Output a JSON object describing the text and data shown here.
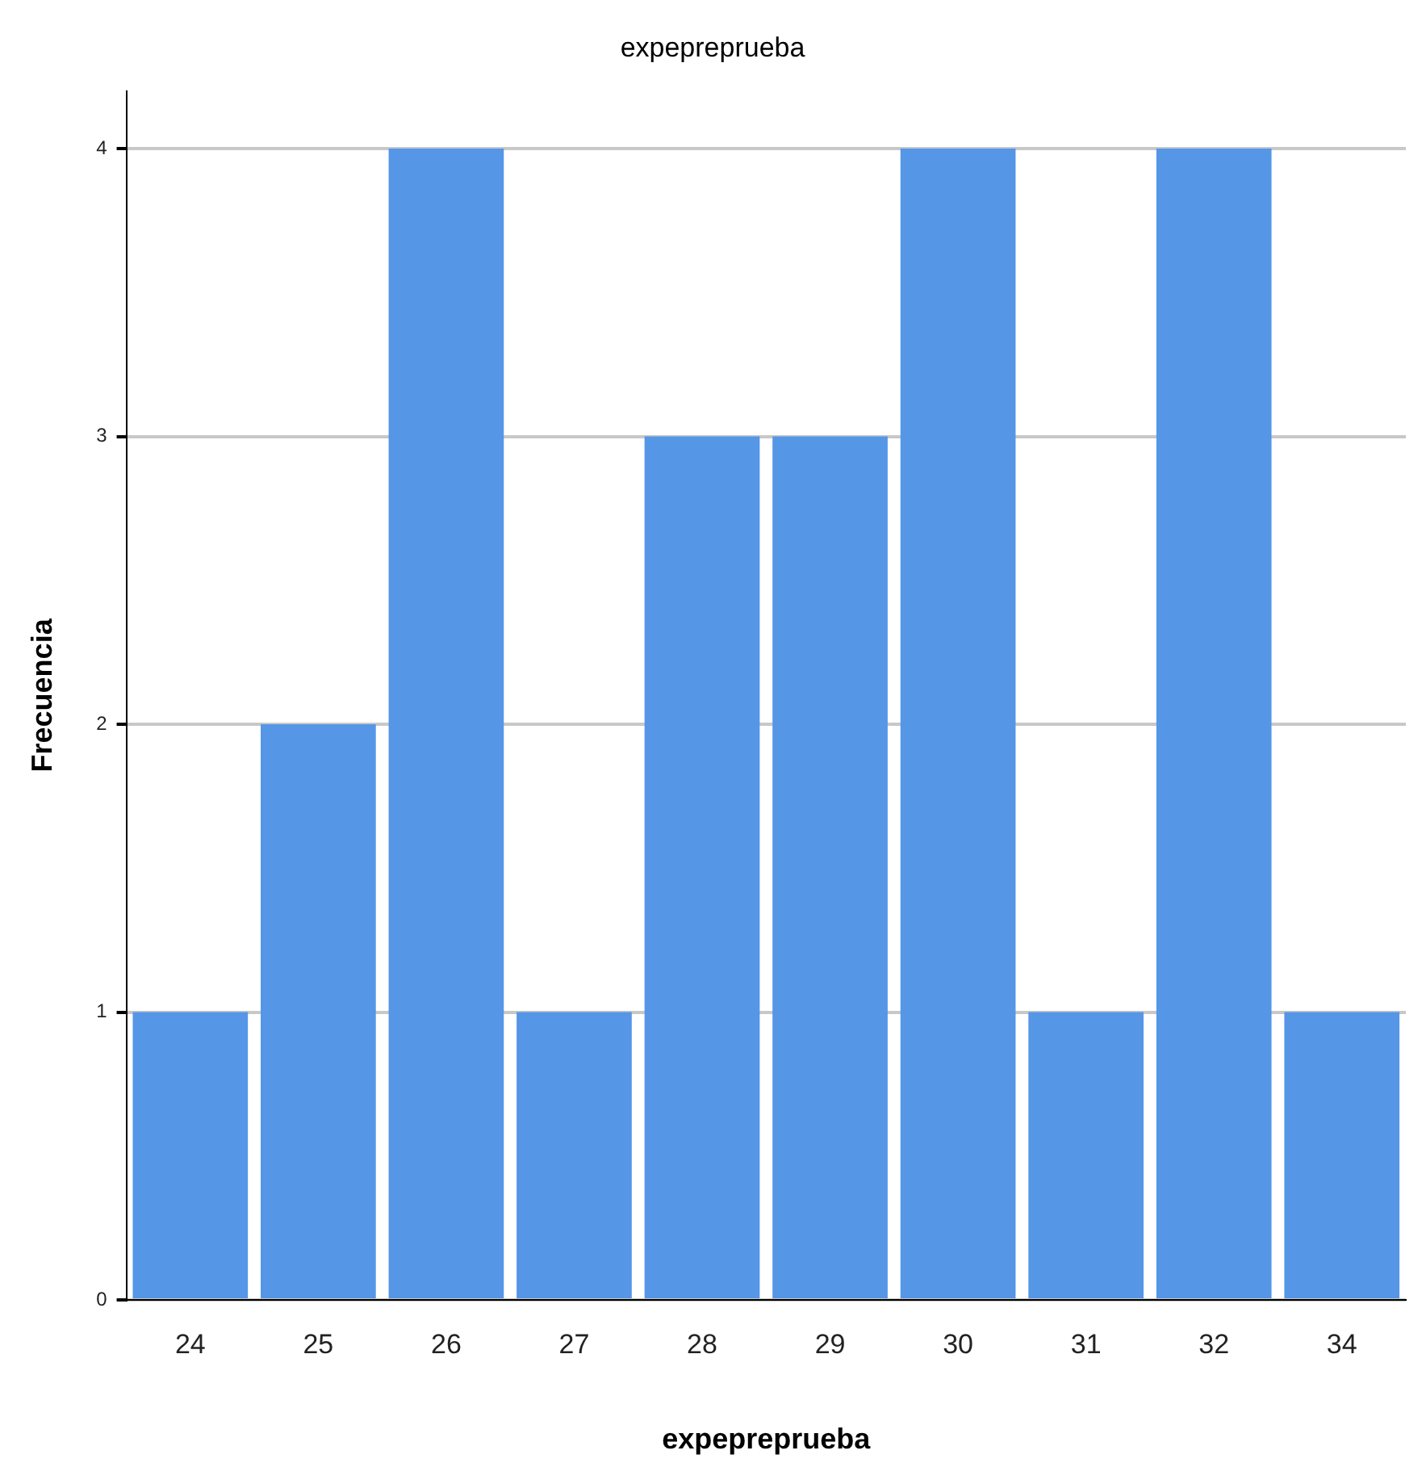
{
  "chart_data": {
    "type": "bar",
    "title": "expepreprueba",
    "xlabel": "expepreprueba",
    "ylabel": "Frecuencia",
    "categories": [
      "24",
      "25",
      "26",
      "27",
      "28",
      "29",
      "30",
      "31",
      "32",
      "34"
    ],
    "values": [
      1,
      2,
      4,
      1,
      3,
      3,
      4,
      1,
      4,
      1
    ],
    "color": "#5596e6",
    "ylim": [
      0,
      4.2
    ],
    "yticks": [
      0,
      1,
      2,
      3,
      4
    ],
    "grid": "y"
  }
}
